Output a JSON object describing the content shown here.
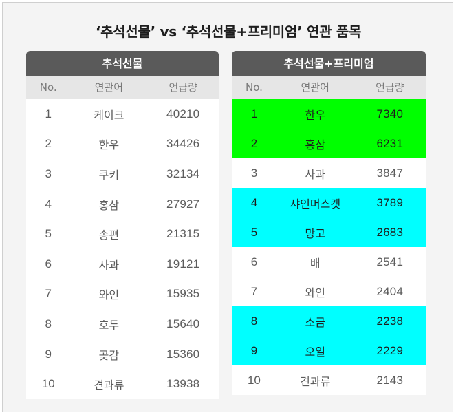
{
  "title": "‘추석선물’ vs ‘추석선물+프리미엄’ 연관 품목",
  "colors": {
    "header_bg": "#5a5a5a",
    "subheader_bg": "#e6e6e6",
    "highlight_green": "#00ff00",
    "highlight_cyan": "#00ffff"
  },
  "tables": [
    {
      "title": "추석선물",
      "columns": [
        "No.",
        "연관어",
        "언급량"
      ],
      "rows": [
        {
          "no": "1",
          "word": "케이크",
          "count": "40210",
          "highlight": ""
        },
        {
          "no": "2",
          "word": "한우",
          "count": "34426",
          "highlight": ""
        },
        {
          "no": "3",
          "word": "쿠키",
          "count": "32134",
          "highlight": ""
        },
        {
          "no": "4",
          "word": "홍삼",
          "count": "27927",
          "highlight": ""
        },
        {
          "no": "5",
          "word": "송편",
          "count": "21315",
          "highlight": ""
        },
        {
          "no": "6",
          "word": "사과",
          "count": "19121",
          "highlight": ""
        },
        {
          "no": "7",
          "word": "와인",
          "count": "15935",
          "highlight": ""
        },
        {
          "no": "8",
          "word": "호두",
          "count": "15640",
          "highlight": ""
        },
        {
          "no": "9",
          "word": "곶감",
          "count": "15360",
          "highlight": ""
        },
        {
          "no": "10",
          "word": "견과류",
          "count": "13938",
          "highlight": ""
        }
      ]
    },
    {
      "title": "추석선물+프리미엄",
      "columns": [
        "No.",
        "연관어",
        "언급량"
      ],
      "rows": [
        {
          "no": "1",
          "word": "한우",
          "count": "7340",
          "highlight": "green"
        },
        {
          "no": "2",
          "word": "홍삼",
          "count": "6231",
          "highlight": "green"
        },
        {
          "no": "3",
          "word": "사과",
          "count": "3847",
          "highlight": ""
        },
        {
          "no": "4",
          "word": "샤인머스켓",
          "count": "3789",
          "highlight": "cyan"
        },
        {
          "no": "5",
          "word": "망고",
          "count": "2683",
          "highlight": "cyan"
        },
        {
          "no": "6",
          "word": "배",
          "count": "2541",
          "highlight": ""
        },
        {
          "no": "7",
          "word": "와인",
          "count": "2404",
          "highlight": ""
        },
        {
          "no": "8",
          "word": "소금",
          "count": "2238",
          "highlight": "cyan"
        },
        {
          "no": "9",
          "word": "오일",
          "count": "2229",
          "highlight": "cyan"
        },
        {
          "no": "10",
          "word": "견과류",
          "count": "2143",
          "highlight": ""
        }
      ]
    }
  ]
}
